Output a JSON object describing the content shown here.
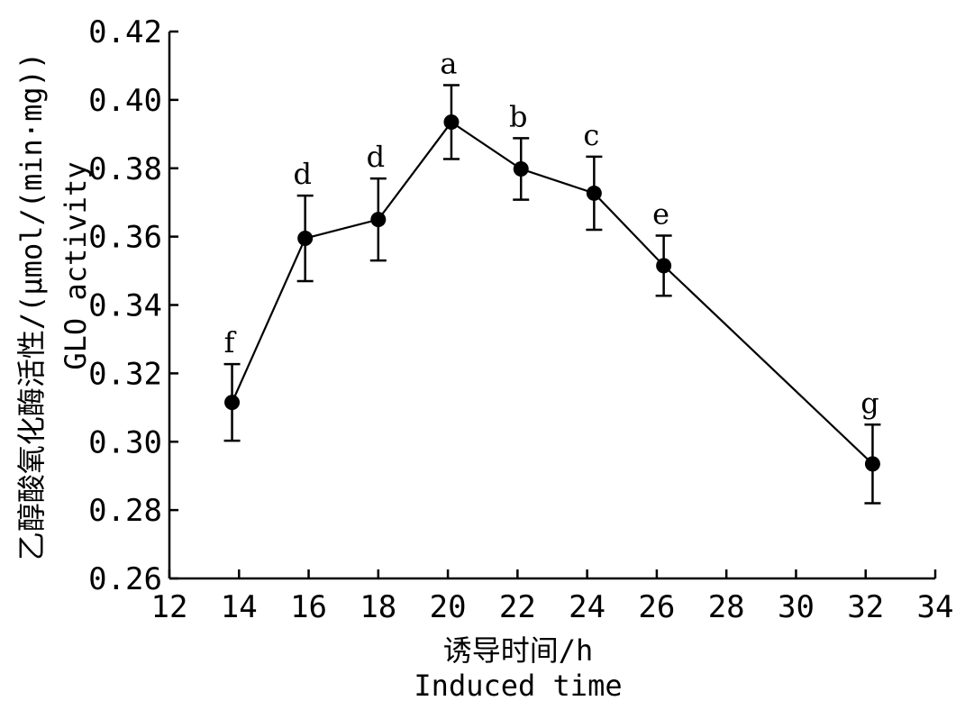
{
  "chart_data": {
    "type": "line",
    "xlabel_zh": "诱导时间/h",
    "xlabel_en": "Induced time",
    "ylabel_zh": "乙醇酸氧化酶活性/(μmol/(min·mg))",
    "ylabel_en": "GLO activity",
    "xlim": [
      12,
      34
    ],
    "ylim": [
      0.26,
      0.42
    ],
    "x_ticks": [
      12,
      14,
      16,
      18,
      20,
      22,
      24,
      26,
      28,
      30,
      32,
      34
    ],
    "x_tick_labels": [
      "12",
      "14",
      "16",
      "18",
      "20",
      "22",
      "24",
      "26",
      "28",
      "30",
      "32",
      "34"
    ],
    "y_ticks": [
      0.26,
      0.28,
      0.3,
      0.32,
      0.34,
      0.36,
      0.38,
      0.4,
      0.42
    ],
    "y_tick_labels": [
      "0.26",
      "0.28",
      "0.30",
      "0.32",
      "0.34",
      "0.36",
      "0.38",
      "0.40",
      "0.42"
    ],
    "grid": false,
    "series": [
      {
        "x": [
          13.8,
          15.9,
          18.0,
          20.1,
          22.1,
          24.2,
          26.2,
          32.2
        ],
        "y": [
          0.3115,
          0.3595,
          0.365,
          0.3935,
          0.3798,
          0.3727,
          0.3515,
          0.2935
        ],
        "error": [
          0.0112,
          0.0125,
          0.012,
          0.0108,
          0.009,
          0.0107,
          0.0088,
          0.0115
        ],
        "labels": [
          "f",
          "d",
          "d",
          "a",
          "b",
          "c",
          "e",
          "g"
        ]
      }
    ]
  }
}
